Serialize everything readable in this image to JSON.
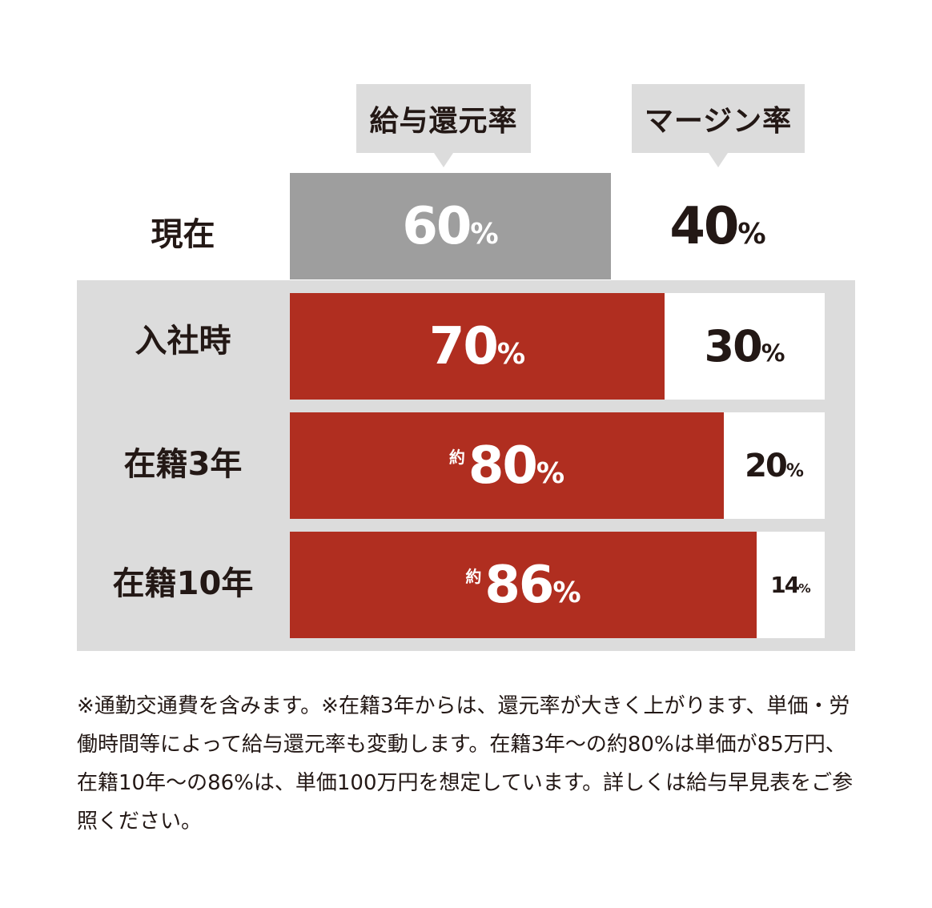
{
  "headers": {
    "salary_return": "給与還元率",
    "margin": "マージン率"
  },
  "colors": {
    "current_bar": "#9e9e9e",
    "highlight_bar": "#b02e20",
    "band": "#dcdcdc",
    "text_dark": "#231815"
  },
  "chart_data": {
    "type": "bar",
    "stacked": true,
    "orientation": "horizontal",
    "categories": [
      "現在",
      "入社時",
      "在籍3年",
      "在籍10年"
    ],
    "series": [
      {
        "name": "給与還元率",
        "values": [
          60,
          70,
          80,
          86
        ]
      },
      {
        "name": "マージン率",
        "values": [
          40,
          30,
          20,
          14
        ]
      }
    ],
    "xlim": [
      0,
      100
    ]
  },
  "rows": [
    {
      "label": "現在",
      "salary_value": "60",
      "margin_value": "40",
      "approx": ""
    },
    {
      "label": "入社時",
      "salary_value": "70",
      "margin_value": "30",
      "approx": ""
    },
    {
      "label": "在籍3年",
      "salary_value": "80",
      "margin_value": "20",
      "approx": "約"
    },
    {
      "label": "在籍10年",
      "salary_value": "86",
      "margin_value": "14",
      "approx": "約"
    }
  ],
  "unit": "%",
  "footnote": "※通勤交通費を含みます。※在籍3年からは、還元率が大きく上がります、単価・労働時間等によって給与還元率も変動します。在籍3年〜の約80%は単価が85万円、在籍10年〜の86%は、単価100万円を想定しています。詳しくは給与早見表をご参照ください。"
}
